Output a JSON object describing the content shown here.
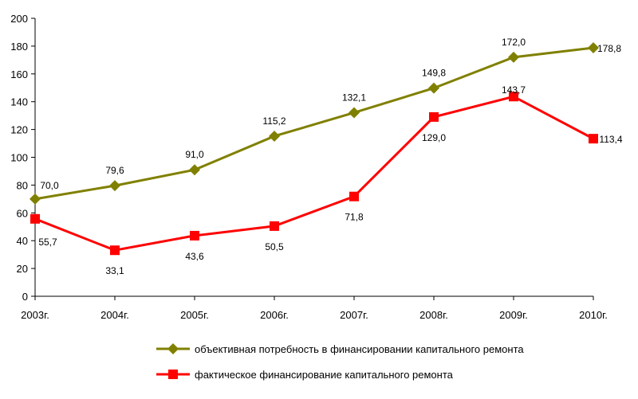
{
  "chart_data": {
    "type": "line",
    "categories": [
      "2003г.",
      "2004г.",
      "2005г.",
      "2006г.",
      "2007г.",
      "2008г.",
      "2009г.",
      "2010г."
    ],
    "series": [
      {
        "name": "объективная потребность в финансировании капитального ремонта",
        "values": [
          70.0,
          79.6,
          91.0,
          115.2,
          132.1,
          149.8,
          172.0,
          178.8
        ],
        "labels": [
          "70,0",
          "79,6",
          "91,0",
          "115,2",
          "132,1",
          "149,8",
          "172,0",
          "178,8"
        ],
        "color": "#808000",
        "marker": "diamond"
      },
      {
        "name": "фактическое финансирование капитального ремонта",
        "values": [
          55.7,
          33.1,
          43.6,
          50.5,
          71.8,
          129.0,
          143.7,
          113.4
        ],
        "labels": [
          "55,7",
          "33,1",
          "43,6",
          "50,5",
          "71,8",
          "129,0",
          "143,7",
          "113,4"
        ],
        "color": "#ff0000",
        "marker": "square"
      }
    ],
    "yticks": [
      "0",
      "20",
      "40",
      "60",
      "80",
      "100",
      "120",
      "140",
      "160",
      "180",
      "200"
    ],
    "ylim": [
      0,
      200
    ],
    "grid": false,
    "legend_position": "bottom"
  }
}
